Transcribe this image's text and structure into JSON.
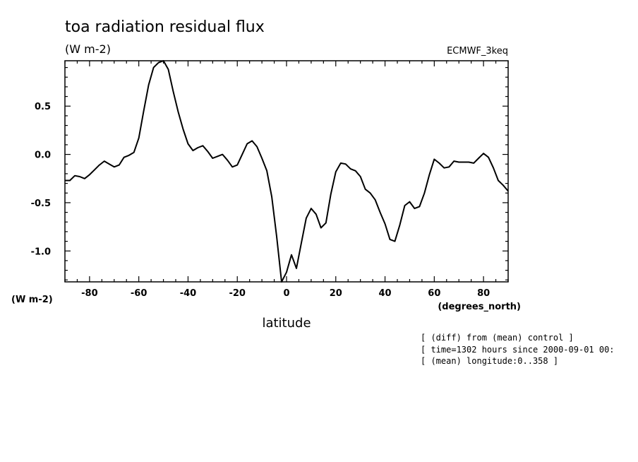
{
  "chart_data": {
    "type": "line",
    "title": "toa radiation residual flux",
    "units": "(W m-2)",
    "dataset": "ECMWF_3keq",
    "xlabel": "latitude",
    "xunits": "(degrees_north)",
    "yunits_left": "(W m-2)",
    "xlim": [
      -90,
      90
    ],
    "ylim": [
      -1.32,
      0.97
    ],
    "xticks": [
      -80,
      -60,
      -40,
      -20,
      0,
      20,
      40,
      60,
      80
    ],
    "yticks": [
      0.5,
      0.0,
      -0.5,
      -1.0
    ],
    "ytick_labels": [
      "0.5",
      "0.0",
      "-0.5",
      "-1.0"
    ],
    "grid": false,
    "series": [
      {
        "x": [
          -90,
          -88,
          -86,
          -84,
          -82,
          -80,
          -78,
          -76,
          -74,
          -72,
          -70,
          -68,
          -66,
          -64,
          -62,
          -60,
          -58,
          -56,
          -54,
          -52,
          -50,
          -48,
          -46,
          -44,
          -42,
          -40,
          -38,
          -36,
          -34,
          -32,
          -30,
          -28,
          -26,
          -24,
          -22,
          -20,
          -18,
          -16,
          -14,
          -12,
          -10,
          -8,
          -6,
          -4,
          -2,
          0,
          2,
          4,
          6,
          8,
          10,
          12,
          14,
          16,
          18,
          20,
          22,
          24,
          26,
          28,
          30,
          32,
          34,
          36,
          38,
          40,
          42,
          44,
          46,
          48,
          50,
          52,
          54,
          56,
          58,
          60,
          62,
          64,
          66,
          68,
          70,
          72,
          74,
          76,
          78,
          80,
          82,
          84,
          86,
          88,
          90
        ],
        "y": [
          -0.27,
          -0.27,
          -0.22,
          -0.23,
          -0.25,
          -0.21,
          -0.16,
          -0.11,
          -0.07,
          -0.1,
          -0.13,
          -0.11,
          -0.03,
          -0.01,
          0.02,
          0.17,
          0.45,
          0.72,
          0.9,
          0.95,
          0.97,
          0.88,
          0.65,
          0.44,
          0.26,
          0.11,
          0.04,
          0.07,
          0.09,
          0.03,
          -0.04,
          -0.02,
          0.0,
          -0.06,
          -0.13,
          -0.11,
          0.0,
          0.11,
          0.14,
          0.08,
          -0.04,
          -0.17,
          -0.44,
          -0.85,
          -1.32,
          -1.22,
          -1.04,
          -1.18,
          -0.92,
          -0.66,
          -0.56,
          -0.62,
          -0.76,
          -0.71,
          -0.41,
          -0.18,
          -0.09,
          -0.1,
          -0.15,
          -0.17,
          -0.23,
          -0.36,
          -0.4,
          -0.47,
          -0.6,
          -0.72,
          -0.88,
          -0.9,
          -0.73,
          -0.53,
          -0.49,
          -0.56,
          -0.54,
          -0.4,
          -0.21,
          -0.05,
          -0.09,
          -0.14,
          -0.13,
          -0.07,
          -0.08,
          -0.08,
          -0.08,
          -0.09,
          -0.04,
          0.01,
          -0.03,
          -0.14,
          -0.27,
          -0.32,
          -0.38
        ]
      }
    ],
    "notes": [
      "[ (diff) from (mean) control ]",
      "[ time=1302 hours since 2000-09-01 00:",
      "[ (mean) longitude:0..358 ]"
    ]
  }
}
